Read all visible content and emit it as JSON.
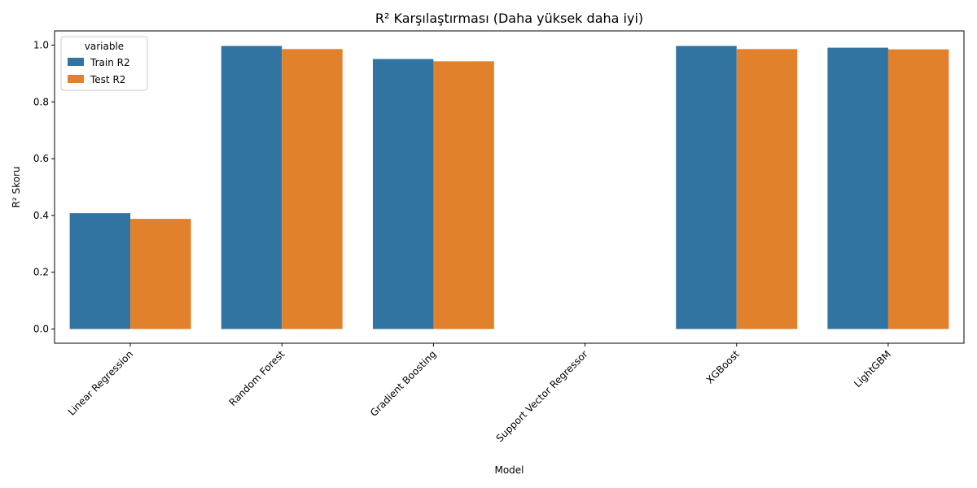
{
  "chart_data": {
    "type": "bar",
    "title": "R² Karşılaştırması (Daha yüksek daha iyi)",
    "xlabel": "Model",
    "ylabel": "R² Skoru",
    "categories": [
      "Linear Regression",
      "Random Forest",
      "Gradient Boosting",
      "Support Vector Regressor",
      "XGBoost",
      "LightGBM"
    ],
    "series": [
      {
        "name": "Train R2",
        "color": "#3274a1",
        "values": [
          0.408,
          0.997,
          0.951,
          0.0,
          0.997,
          0.991
        ]
      },
      {
        "name": "Test R2",
        "color": "#e1812c",
        "values": [
          0.388,
          0.986,
          0.943,
          0.0,
          0.986,
          0.985
        ]
      }
    ],
    "ylim": [
      -0.05,
      1.05
    ],
    "yticks": [
      0.0,
      0.2,
      0.4,
      0.6,
      0.8,
      1.0
    ],
    "ytick_labels": [
      "0.0",
      "0.2",
      "0.4",
      "0.6",
      "0.8",
      "1.0"
    ],
    "x_tick_rotation_deg": 45,
    "legend": {
      "title": "variable",
      "placement": "top-left"
    },
    "grid": false
  }
}
